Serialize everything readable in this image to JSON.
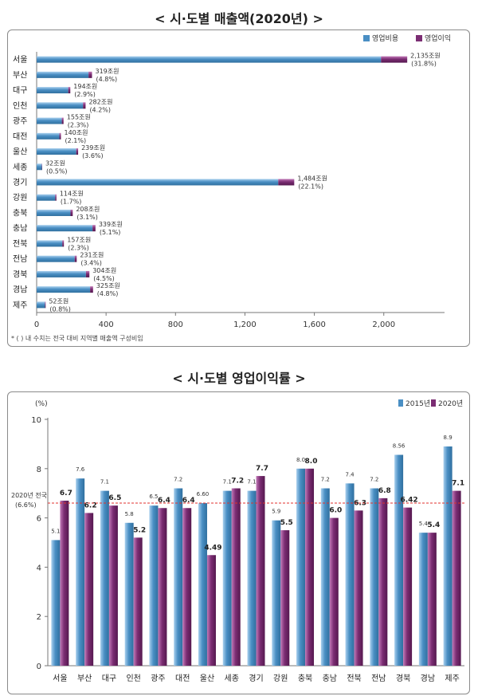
{
  "chart_data": [
    {
      "type": "bar",
      "orientation": "horizontal",
      "stacked": true,
      "title": "< 시·도별 매출액(2020년) >",
      "categories": [
        "서울",
        "부산",
        "대구",
        "인천",
        "광주",
        "대전",
        "울산",
        "세종",
        "경기",
        "강원",
        "충북",
        "충남",
        "전북",
        "전남",
        "경북",
        "경남",
        "제주"
      ],
      "series": [
        {
          "name": "영업비용",
          "values": [
            1984,
            299,
            182,
            267,
            145,
            131,
            228,
            30,
            1392,
            107,
            195,
            322,
            148,
            219,
            284,
            308,
            48
          ]
        },
        {
          "name": "영업이익",
          "values": [
            151,
            20,
            12,
            15,
            10,
            9,
            11,
            2,
            92,
            7,
            13,
            17,
            9,
            12,
            20,
            17,
            4
          ]
        }
      ],
      "total_labels": [
        "2,135조원",
        "319조원",
        "194조원",
        "282조원",
        "155조원",
        "140조원",
        "239조원",
        "32조원",
        "1,484조원",
        "114조원",
        "208조원",
        "339조원",
        "157조원",
        "231조원",
        "304조원",
        "325조원",
        "52조원"
      ],
      "share_labels": [
        "(31.8%)",
        "(4.8%)",
        "(2.9%)",
        "(4.2%)",
        "(2.3%)",
        "(2.1%)",
        "(3.6%)",
        "(0.5%)",
        "(22.1%)",
        "(1.7%)",
        "(3.1%)",
        "(5.1%)",
        "(2.3%)",
        "(3.4%)",
        "(4.5%)",
        "(4.8%)",
        "(0.8%)"
      ],
      "xticks": [
        "0",
        "400",
        "800",
        "1,200",
        "1,600",
        "2,000"
      ],
      "xlim": [
        0,
        2350
      ],
      "footnote": "* ( ) 내 수치는 전국 대비 지역별 매출액 구성비임",
      "legend_position": "top-right",
      "colors": {
        "영업비용": "#4a8fc4",
        "영업이익": "#7b2d73"
      }
    },
    {
      "type": "bar",
      "title": "< 시·도별 영업이익률 >",
      "categories": [
        "서울",
        "부산",
        "대구",
        "인천",
        "광주",
        "대전",
        "울산",
        "세종",
        "경기",
        "강원",
        "충북",
        "충남",
        "전북",
        "전남",
        "경북",
        "경남",
        "제주"
      ],
      "series": [
        {
          "name": "2015년",
          "values": [
            5.1,
            7.6,
            7.1,
            5.8,
            6.5,
            7.2,
            6.6,
            7.1,
            7.1,
            5.9,
            8.0,
            7.2,
            7.4,
            7.2,
            8.56,
            5.4,
            8.9
          ],
          "labels": [
            "5.1",
            "7.6",
            "7.1",
            "5.8",
            "6.5",
            "7.2",
            "6.60",
            "7.1",
            "7.1",
            "5.9",
            "8.0",
            "7.2",
            "7.4",
            "7.2",
            "8.56",
            "5.4",
            "8.9"
          ]
        },
        {
          "name": "2020년",
          "values": [
            6.7,
            6.2,
            6.5,
            5.2,
            6.4,
            6.4,
            4.49,
            7.2,
            7.7,
            5.5,
            8.0,
            6.0,
            6.3,
            6.8,
            6.42,
            5.4,
            7.1
          ],
          "labels": [
            "6.7",
            "6.2",
            "6.5",
            "5.2",
            "6.4",
            "6.4",
            "4.49",
            "7.2",
            "7.7",
            "5.5",
            "8.0",
            "6.0",
            "6.3",
            "6.8",
            "6.42",
            "5.4",
            "7.1"
          ]
        }
      ],
      "ylabel": "(%)",
      "yticks": [
        "0",
        "2",
        "4",
        "6",
        "8",
        "10"
      ],
      "ylim": [
        0,
        10
      ],
      "reference_line": {
        "value": 6.6,
        "label_line1": "2020년 전국",
        "label_line2": "(6.6%)"
      },
      "legend_position": "top-right",
      "colors": {
        "2015년": "#4a8fc4",
        "2020년": "#7b2d73",
        "reference": "#e0312d"
      }
    }
  ]
}
